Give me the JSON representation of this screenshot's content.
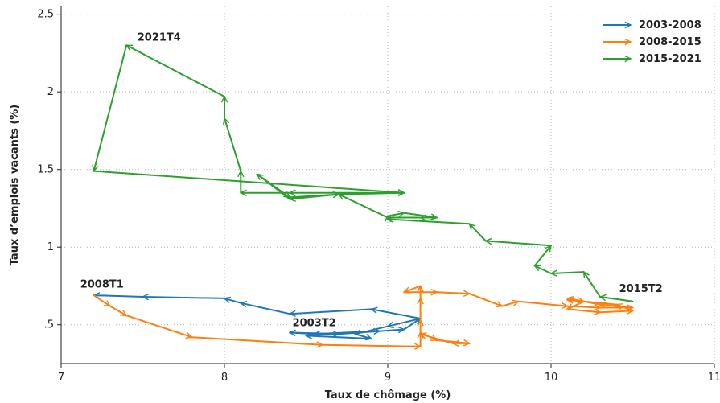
{
  "chart_data": {
    "type": "line",
    "title": "",
    "xlabel": "Taux de chômage (%)",
    "ylabel": "Taux d’emplois vacants (%)",
    "xlim": [
      7,
      11
    ],
    "ylim": [
      0.25,
      2.55
    ],
    "xticks": [
      7,
      8,
      9,
      10,
      11
    ],
    "xtick_labels": [
      "7",
      "8",
      "9",
      "10",
      "11"
    ],
    "yticks": [
      0.5,
      1,
      1.5,
      2,
      2.5
    ],
    "ytick_labels": [
      ".5",
      "1",
      "1.5",
      "2",
      "2.5"
    ],
    "grid": true,
    "grid_style": "dotted",
    "legend_position": "top-right",
    "series": [
      {
        "name": "2003-2008",
        "color": "#1f77b4",
        "points": [
          [
            9.2,
            0.54
          ],
          [
            9.0,
            0.49
          ],
          [
            8.8,
            0.44
          ],
          [
            8.9,
            0.41
          ],
          [
            8.5,
            0.43
          ],
          [
            8.95,
            0.46
          ],
          [
            8.55,
            0.44
          ],
          [
            8.4,
            0.45
          ],
          [
            8.7,
            0.44
          ],
          [
            9.1,
            0.47
          ],
          [
            9.2,
            0.54
          ],
          [
            8.9,
            0.6
          ],
          [
            8.4,
            0.57
          ],
          [
            8.1,
            0.64
          ],
          [
            8.0,
            0.67
          ],
          [
            7.5,
            0.68
          ],
          [
            7.2,
            0.69
          ]
        ]
      },
      {
        "name": "2008-2015",
        "color": "#ff7f0e",
        "points": [
          [
            7.2,
            0.69
          ],
          [
            7.3,
            0.62
          ],
          [
            7.4,
            0.56
          ],
          [
            7.8,
            0.42
          ],
          [
            8.6,
            0.37
          ],
          [
            9.2,
            0.36
          ],
          [
            9.2,
            0.45
          ],
          [
            9.3,
            0.4
          ],
          [
            9.5,
            0.38
          ],
          [
            9.4,
            0.38
          ],
          [
            9.2,
            0.44
          ],
          [
            9.2,
            0.53
          ],
          [
            9.2,
            0.67
          ],
          [
            9.2,
            0.75
          ],
          [
            9.1,
            0.71
          ],
          [
            9.3,
            0.71
          ],
          [
            9.5,
            0.7
          ],
          [
            9.7,
            0.62
          ],
          [
            9.8,
            0.65
          ],
          [
            10.1,
            0.62
          ],
          [
            10.3,
            0.61
          ],
          [
            10.5,
            0.61
          ],
          [
            10.3,
            0.63
          ],
          [
            10.1,
            0.67
          ],
          [
            10.2,
            0.65
          ],
          [
            10.1,
            0.6
          ],
          [
            10.3,
            0.58
          ],
          [
            10.5,
            0.59
          ],
          [
            10.4,
            0.63
          ],
          [
            10.1,
            0.66
          ]
        ]
      },
      {
        "name": "2015-2021",
        "color": "#2ca02c",
        "points": [
          [
            10.5,
            0.65
          ],
          [
            10.3,
            0.68
          ],
          [
            10.2,
            0.84
          ],
          [
            10.0,
            0.83
          ],
          [
            9.9,
            0.88
          ],
          [
            10.0,
            1.01
          ],
          [
            9.6,
            1.04
          ],
          [
            9.5,
            1.15
          ],
          [
            9.0,
            1.18
          ],
          [
            9.0,
            1.2
          ],
          [
            9.1,
            1.22
          ],
          [
            9.3,
            1.19
          ],
          [
            9.2,
            1.19
          ],
          [
            9.0,
            1.19
          ],
          [
            8.7,
            1.34
          ],
          [
            8.4,
            1.31
          ],
          [
            8.2,
            1.47
          ],
          [
            8.4,
            1.32
          ],
          [
            8.7,
            1.34
          ],
          [
            9.1,
            1.35
          ],
          [
            8.4,
            1.35
          ],
          [
            8.1,
            1.35
          ],
          [
            8.1,
            1.49
          ],
          [
            8.0,
            1.83
          ],
          [
            8.0,
            1.97
          ],
          [
            7.4,
            2.3
          ],
          [
            7.2,
            1.49
          ],
          [
            9.1,
            1.35
          ]
        ]
      }
    ],
    "annotations": [
      {
        "text": "2021T4",
        "x": 7.6,
        "y": 2.33
      },
      {
        "text": "2008T1",
        "x": 7.25,
        "y": 0.74
      },
      {
        "text": "2003T2",
        "x": 8.55,
        "y": 0.49
      },
      {
        "text": "2015T2",
        "x": 10.55,
        "y": 0.71
      }
    ]
  }
}
